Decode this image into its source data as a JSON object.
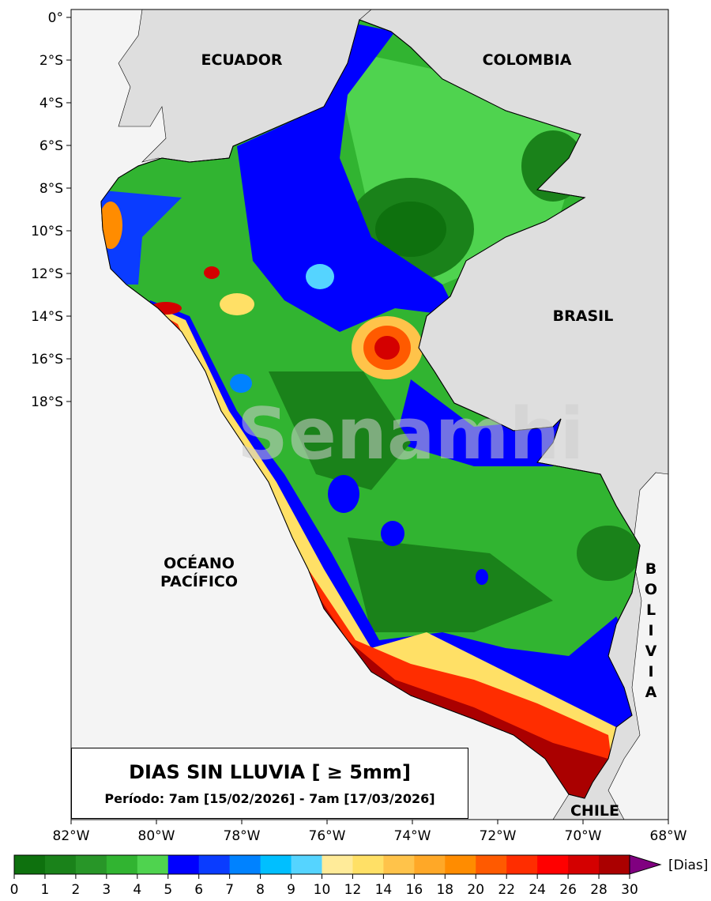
{
  "map": {
    "title": "DIAS SIN LLUVIA [ ≥ 5mm]",
    "period": "Período: 7am [15/02/2026] - 7am [17/03/2026]",
    "lat_ticks": [
      "0°",
      "2°S",
      "4°S",
      "6°S",
      "8°S",
      "10°S",
      "12°S",
      "14°S",
      "16°S",
      "18°S"
    ],
    "lon_ticks": [
      "82°W",
      "80°W",
      "78°W",
      "76°W",
      "74°W",
      "72°W",
      "70°W",
      "68°W"
    ],
    "labels": {
      "ecuador": "ECUADOR",
      "colombia": "COLOMBIA",
      "brasil": "BRASIL",
      "oceano1": "OCÉANO",
      "oceano2": "PACÍFICO",
      "bolivia": [
        "B",
        "O",
        "L",
        "I",
        "V",
        "I",
        "A"
      ],
      "chile": "CHILE"
    },
    "watermark": "Senamhi"
  },
  "colorbar": {
    "unit": "[Dias]",
    "tick_labels": [
      "0",
      "1",
      "2",
      "3",
      "4",
      "5",
      "6",
      "7",
      "8",
      "9",
      "10",
      "12",
      "14",
      "16",
      "18",
      "20",
      "22",
      "24",
      "26",
      "28",
      "30"
    ],
    "colors": [
      "#0e710e",
      "#1a821a",
      "#289628",
      "#31b431",
      "#4fd34f",
      "#0000ff",
      "#0a3cff",
      "#0082ff",
      "#00bfff",
      "#55d4ff",
      "#ffeb99",
      "#ffe066",
      "#ffc34a",
      "#ffa827",
      "#ff8c00",
      "#ff5a00",
      "#ff2d00",
      "#ff0000",
      "#d40000",
      "#aa0000"
    ],
    "extend_color": "#800080"
  }
}
